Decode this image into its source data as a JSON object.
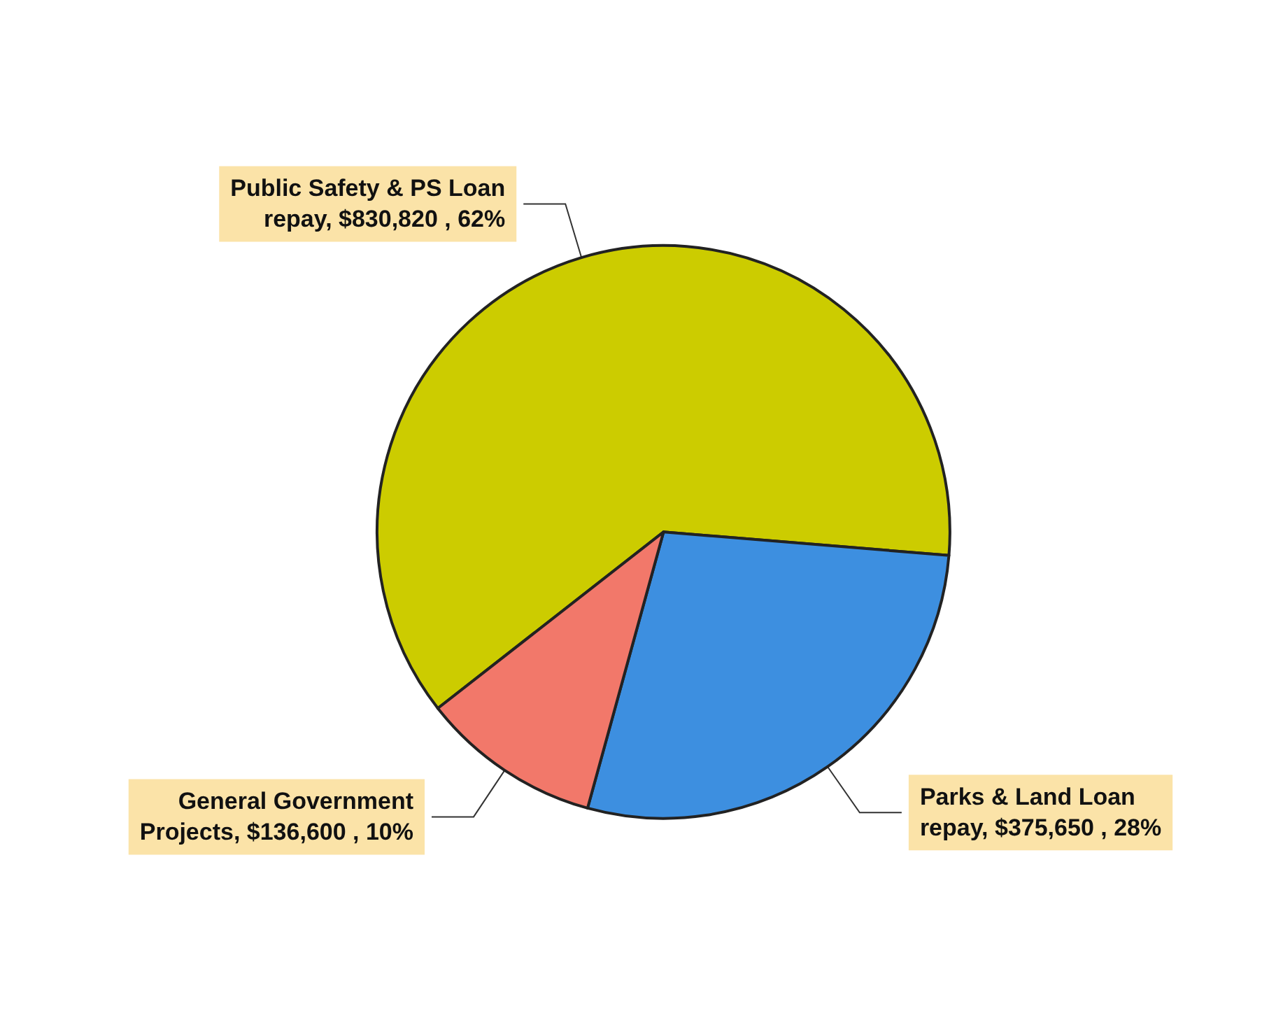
{
  "chart_data": {
    "type": "pie",
    "categories": [
      "Public Safety & PS Loan repay",
      "Parks & Land Loan repay",
      "General Government Projects"
    ],
    "values": [
      830820,
      375650,
      136600
    ],
    "value_labels": [
      "$830,820 , 62%",
      "$375,650 , 28%",
      "$136,600 , 10%"
    ],
    "colors": [
      "#cccc00",
      "#3d8fe0",
      "#f2786a"
    ],
    "legend": false
  }
}
